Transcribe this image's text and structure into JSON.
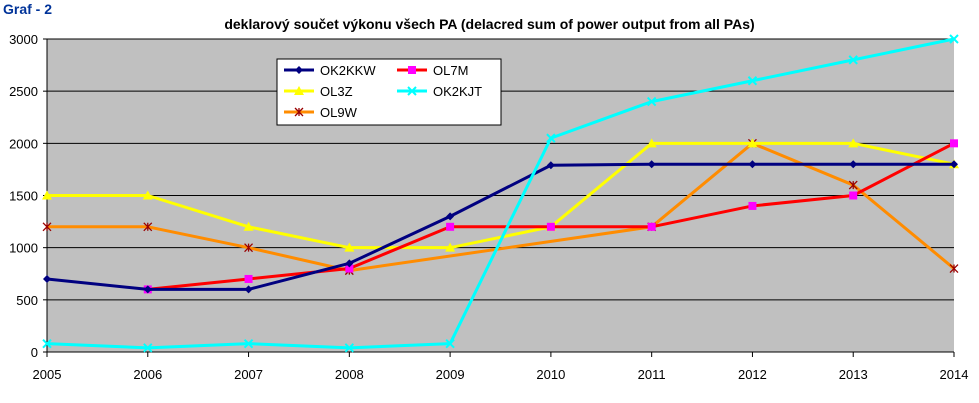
{
  "header": {
    "graf_label": "Graf - 2",
    "title": "deklarový součet výkonu všech PA (delacred sum of power output from all PAs)"
  },
  "chart_data": {
    "type": "line",
    "title": "deklarový součet výkonu všech PA (delacred sum of power output from all PAs)",
    "xlabel": "",
    "ylabel": "",
    "x": [
      "2005",
      "2006",
      "2007",
      "2008",
      "2009",
      "2010",
      "2011",
      "2012",
      "2013",
      "2014"
    ],
    "ylim": [
      0,
      3000
    ],
    "yticks": [
      0,
      500,
      1000,
      1500,
      2000,
      2500,
      3000
    ],
    "grid": true,
    "plot_background": "#c0c0c0",
    "legend_position": "top-left inside plot",
    "series": [
      {
        "name": "OK2KKW",
        "color": "#000080",
        "marker": "diamond",
        "values": [
          700,
          600,
          600,
          850,
          1300,
          1790,
          1800,
          1800,
          1800,
          1800
        ]
      },
      {
        "name": "OL7M",
        "color": "#ff0000",
        "marker_color": "#ff00ff",
        "marker": "square",
        "values": [
          null,
          600,
          700,
          800,
          1200,
          1200,
          1200,
          1400,
          1500,
          2000
        ]
      },
      {
        "name": "OL3Z",
        "color": "#ffff00",
        "marker": "triangle",
        "values": [
          1500,
          1500,
          1200,
          1000,
          1000,
          1200,
          2000,
          2000,
          2000,
          1800
        ]
      },
      {
        "name": "OK2KJT",
        "color": "#00ffff",
        "marker": "x",
        "values": [
          80,
          40,
          80,
          40,
          80,
          2050,
          2400,
          2600,
          2800,
          3000
        ]
      },
      {
        "name": "OL9W",
        "color": "#ff8c00",
        "marker_color": "#990000",
        "marker": "star",
        "values": [
          1200,
          1200,
          1000,
          780,
          null,
          null,
          1200,
          2000,
          1600,
          800
        ]
      }
    ]
  }
}
